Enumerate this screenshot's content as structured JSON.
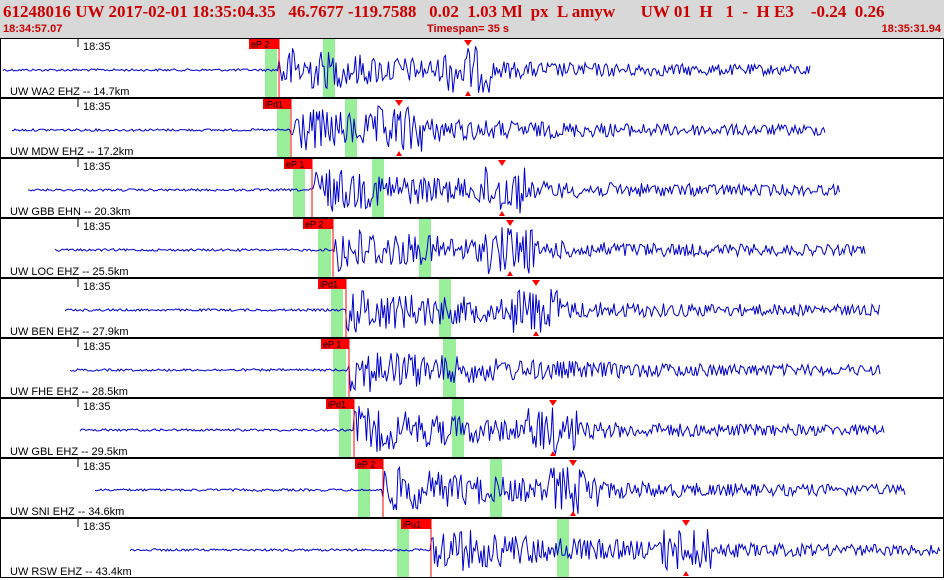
{
  "header": {
    "summary": "61248016 UW 2017-02-01 18:35:04.35   46.7677 -119.7588   0.02  1.03 Ml  px  L amyw      UW 01  H   1  -  H E3    -0.24  0.26",
    "start_time": "18:34:57.07",
    "timespan": "Timespan=  35 s",
    "end_time": "18:35:31.94"
  },
  "colors": {
    "waveform": "#0000cc",
    "pick": "#ff0000",
    "window": "#99ee99",
    "header_bg": "#d8d8d8",
    "header_text": "#cc0000"
  },
  "tick_label": "18:35",
  "traces": [
    {
      "label": "UW WA2 EHZ -- 14.7km",
      "pick": "eP 2"
    },
    {
      "label": "UW MDW EHZ -- 17.2km",
      "pick": "iPd1"
    },
    {
      "label": "UW GBB EHN -- 20.3km",
      "pick": "eP 1"
    },
    {
      "label": "UW LOC EHZ -- 25.5km",
      "pick": "eP 2"
    },
    {
      "label": "UW BEN EHZ -- 27.9km",
      "pick": "iPd1"
    },
    {
      "label": "UW FHE EHZ -- 28.5km",
      "pick": "eP 1"
    },
    {
      "label": "UW GBL EHZ -- 29.5km",
      "pick": "iPd1"
    },
    {
      "label": "UW SNI EHZ -- 34.6km",
      "pick": "eP 2"
    },
    {
      "label": "UW RSW EHZ -- 43.4km",
      "pick": "iPu1"
    }
  ]
}
